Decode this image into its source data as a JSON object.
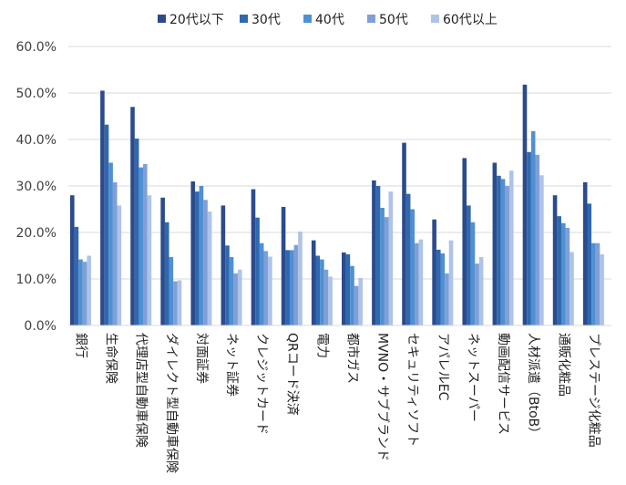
{
  "chart_data": {
    "type": "bar",
    "title": "",
    "xlabel": "",
    "ylabel": "",
    "ylim": [
      0,
      0.6
    ],
    "yticks": [
      {
        "value": 0.0,
        "label": "0.0%"
      },
      {
        "value": 0.1,
        "label": "10.0%"
      },
      {
        "value": 0.2,
        "label": "20.0%"
      },
      {
        "value": 0.3,
        "label": "30.0%"
      },
      {
        "value": 0.4,
        "label": "40.0%"
      },
      {
        "value": 0.5,
        "label": "50.0%"
      },
      {
        "value": 0.6,
        "label": "60.0%"
      }
    ],
    "grid": true,
    "legend_position": "top",
    "categories": [
      "銀行",
      "生命保険",
      "代理店型自動車保険",
      "ダイレクト型自動車保険",
      "対面証券",
      "ネット証券",
      "クレジットカード",
      "QRコード決済",
      "電力",
      "都市ガス",
      "MVNO・サブブランド",
      "セキュリティソフト",
      "アパレルEC",
      "ネットスーパー",
      "動画配信サービス",
      "人材派遣（BtoB）",
      "通販化粧品",
      "プレステージ化粧品"
    ],
    "series": [
      {
        "name": "20代以下",
        "color": "#2b4b8c",
        "values": [
          0.28,
          0.505,
          0.47,
          0.275,
          0.31,
          0.258,
          0.293,
          0.255,
          0.183,
          0.157,
          0.312,
          0.393,
          0.228,
          0.36,
          0.35,
          0.518,
          0.28,
          0.308
        ]
      },
      {
        "name": "30代",
        "color": "#2f68ae",
        "values": [
          0.212,
          0.432,
          0.402,
          0.222,
          0.288,
          0.172,
          0.232,
          0.162,
          0.15,
          0.153,
          0.3,
          0.283,
          0.163,
          0.258,
          0.322,
          0.373,
          0.235,
          0.262
        ]
      },
      {
        "name": "40代",
        "color": "#4f90d2",
        "values": [
          0.142,
          0.35,
          0.34,
          0.147,
          0.3,
          0.147,
          0.177,
          0.162,
          0.142,
          0.128,
          0.253,
          0.25,
          0.155,
          0.222,
          0.315,
          0.418,
          0.22,
          0.177
        ]
      },
      {
        "name": "50代",
        "color": "#7f9fd6",
        "values": [
          0.137,
          0.308,
          0.347,
          0.095,
          0.27,
          0.112,
          0.16,
          0.173,
          0.12,
          0.085,
          0.233,
          0.177,
          0.112,
          0.133,
          0.3,
          0.367,
          0.21,
          0.177
        ]
      },
      {
        "name": "60代以上",
        "color": "#aec3e8",
        "values": [
          0.15,
          0.258,
          0.28,
          0.097,
          0.245,
          0.12,
          0.148,
          0.202,
          0.105,
          0.102,
          0.288,
          0.185,
          0.183,
          0.147,
          0.333,
          0.323,
          0.158,
          0.153
        ]
      }
    ]
  }
}
